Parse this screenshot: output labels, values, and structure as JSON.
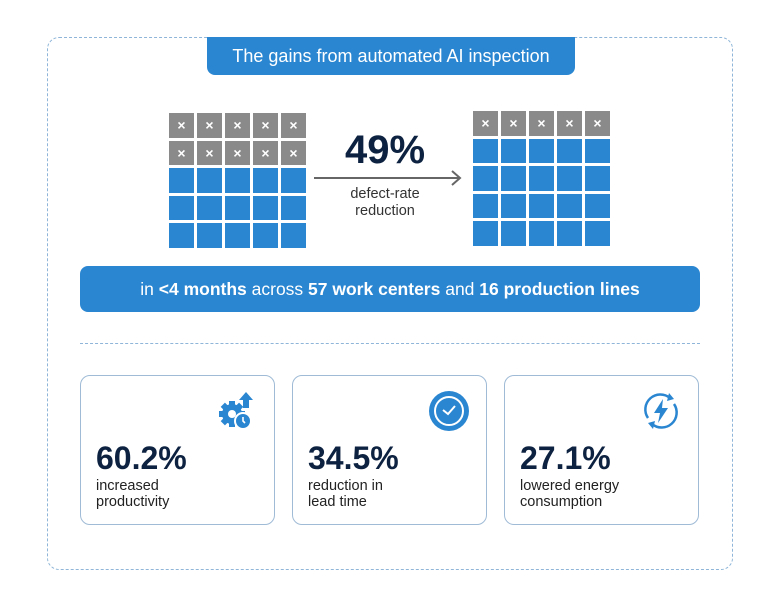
{
  "title": "The gains from automated AI inspection",
  "colors": {
    "accent": "#2a86d1",
    "defect": "#8a8a8a",
    "text": "#0d2240"
  },
  "before_grid": {
    "rows": 5,
    "cols": 5,
    "defect_rows": 2
  },
  "after_grid": {
    "rows": 5,
    "cols": 5,
    "defect_rows": 1
  },
  "defect_mark": "×",
  "headline": {
    "value": "49%",
    "label_line1": "defect-rate",
    "label_line2": "reduction"
  },
  "band": [
    {
      "text": "in ",
      "bold": false
    },
    {
      "text": "<4 months",
      "bold": true
    },
    {
      "text": " across ",
      "bold": false
    },
    {
      "text": "57 work centers",
      "bold": true
    },
    {
      "text": " and ",
      "bold": false
    },
    {
      "text": "16 production lines",
      "bold": true
    }
  ],
  "cards": [
    {
      "icon": "gear-clock-up-arrow-icon",
      "value": "60.2%",
      "line1": "increased",
      "line2": "productivity"
    },
    {
      "icon": "clock-icon",
      "value": "34.5%",
      "line1": "reduction in",
      "line2": "lead time"
    },
    {
      "icon": "energy-cycle-icon",
      "value": "27.1%",
      "line1": "lowered energy",
      "line2": "consumption"
    }
  ]
}
